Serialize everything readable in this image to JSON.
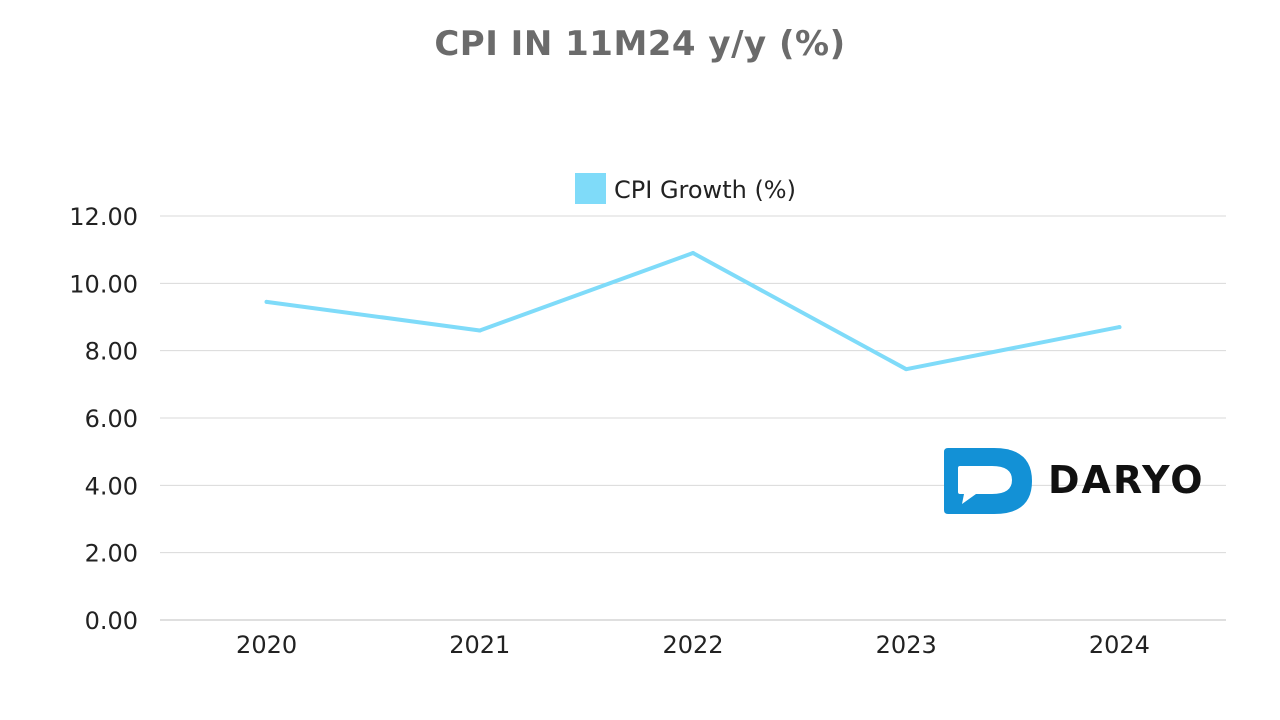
{
  "colors": {
    "line": "#7FDBF9",
    "grid": "#d9d9d9",
    "axis_text": "#222222",
    "title": "#6b6b6b",
    "logo_blue": "#1391d6",
    "logo_text": "#111111"
  },
  "logo": {
    "text": "DARYO",
    "icon": "daryo-speech-bubble-icon"
  },
  "chart_data": {
    "type": "line",
    "title": "CPI IN 11M24 y/y (%)",
    "categories": [
      "2020",
      "2021",
      "2022",
      "2023",
      "2024"
    ],
    "series": [
      {
        "name": "CPI Growth (%)",
        "values": [
          9.45,
          8.6,
          10.9,
          7.45,
          8.7
        ]
      }
    ],
    "ylim": [
      0,
      12
    ],
    "yticks": [
      "0.00",
      "2.00",
      "4.00",
      "6.00",
      "8.00",
      "10.00",
      "12.00"
    ],
    "grid": true,
    "legend_position": "top-center",
    "xlabel": "",
    "ylabel": ""
  }
}
